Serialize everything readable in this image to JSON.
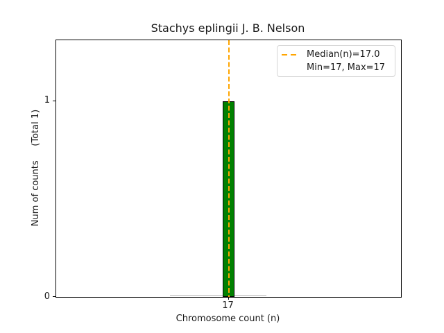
{
  "chart_data": {
    "type": "bar",
    "subtype": "histogram",
    "title": "Stachys eplingii J. B. Nelson",
    "xlabel": "Chromosome count (n)",
    "ylabel": "Num of counts     (Total 1)",
    "categories": [
      17
    ],
    "values": [
      1
    ],
    "bin_width": 0.36,
    "median": 17.0,
    "min": 17,
    "max": 17,
    "total_counts": 1,
    "xlim": [
      12,
      22
    ],
    "ylim": [
      0,
      1.31
    ],
    "xticks": [
      17
    ],
    "yticks": [
      0,
      1
    ],
    "grid": false,
    "legend_position": "upper right",
    "legend": [
      "Median(n)=17.0",
      "Min=17, Max=17"
    ],
    "zero_baseline_x_range": [
      15.3,
      18.1
    ],
    "colors": {
      "bar_fill": "#008000",
      "bar_edge": "#000000",
      "median_line": "#ffa500",
      "zero_baseline": "#b3b3b3",
      "legend_border": "#d4d4d4",
      "text": "#1a1a1a"
    }
  }
}
